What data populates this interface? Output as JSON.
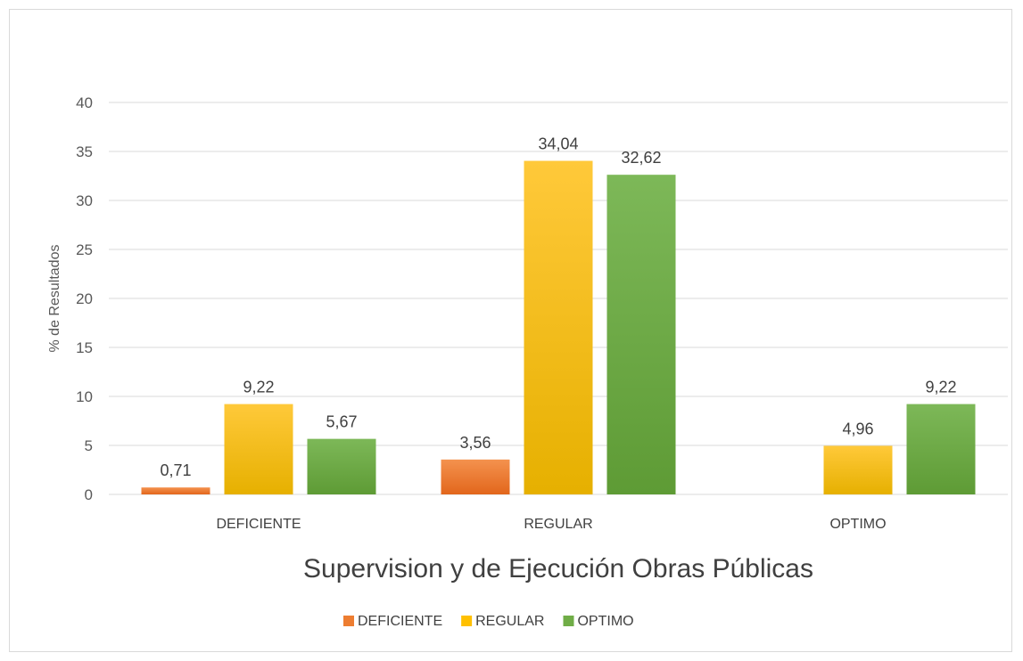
{
  "chart_data": {
    "type": "bar",
    "categories": [
      "DEFICIENTE",
      "REGULAR",
      "OPTIMO"
    ],
    "series": [
      {
        "name": "DEFICIENTE",
        "values": [
          0.71,
          3.56,
          null
        ],
        "labels": [
          "0,71",
          "3,56",
          ""
        ],
        "color": "#ED7D31"
      },
      {
        "name": "REGULAR",
        "values": [
          9.22,
          34.04,
          4.96
        ],
        "labels": [
          "9,22",
          "34,04",
          "4,96"
        ],
        "color": "#FFC000"
      },
      {
        "name": "OPTIMO",
        "values": [
          5.67,
          32.62,
          9.22
        ],
        "labels": [
          "5,67",
          "32,62",
          "9,22"
        ],
        "color": "#70AD47"
      }
    ],
    "title": "",
    "xlabel": "Supervision y  de Ejecución Obras Públicas",
    "ylabel": "% de Resultados",
    "ylim": [
      0,
      40
    ],
    "yticks": [
      0,
      5,
      10,
      15,
      20,
      25,
      30,
      35,
      40
    ],
    "grid": true,
    "legend": "bottom"
  }
}
